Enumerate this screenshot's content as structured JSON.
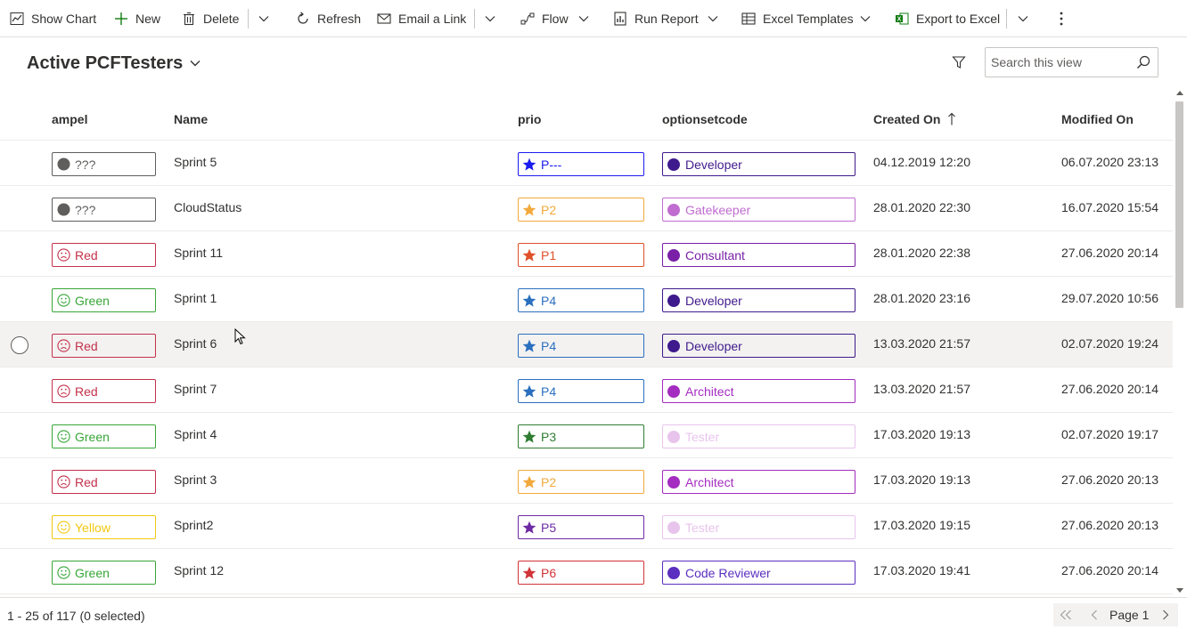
{
  "toolbar": {
    "show_chart": "Show Chart",
    "new": "New",
    "delete": "Delete",
    "refresh": "Refresh",
    "email_link": "Email a Link",
    "flow": "Flow",
    "run_report": "Run Report",
    "excel_templates": "Excel Templates",
    "export_excel": "Export to Excel"
  },
  "view": {
    "title": "Active PCFTesters",
    "search_placeholder": "Search this view"
  },
  "columns": {
    "ampel": "ampel",
    "name": "Name",
    "prio": "prio",
    "optionsetcode": "optionsetcode",
    "created_on": "Created On",
    "modified_on": "Modified On"
  },
  "rows": [
    {
      "ampel": "???",
      "name": "Sprint 5",
      "prio": "P---",
      "option": "Developer",
      "created": "04.12.2019 12:20",
      "modified": "06.07.2020 23:13"
    },
    {
      "ampel": "???",
      "name": "CloudStatus",
      "prio": "P2",
      "option": "Gatekeeper",
      "created": "28.01.2020 22:30",
      "modified": "16.07.2020 15:54"
    },
    {
      "ampel": "Red",
      "name": "Sprint 11",
      "prio": "P1",
      "option": "Consultant",
      "created": "28.01.2020 22:38",
      "modified": "27.06.2020 20:14"
    },
    {
      "ampel": "Green",
      "name": "Sprint 1",
      "prio": "P4",
      "option": "Developer",
      "created": "28.01.2020 23:16",
      "modified": "29.07.2020 10:56"
    },
    {
      "ampel": "Red",
      "name": "Sprint 6",
      "prio": "P4",
      "option": "Developer",
      "created": "13.03.2020 21:57",
      "modified": "02.07.2020 19:24"
    },
    {
      "ampel": "Red",
      "name": "Sprint 7",
      "prio": "P4",
      "option": "Architect",
      "created": "13.03.2020 21:57",
      "modified": "27.06.2020 20:14"
    },
    {
      "ampel": "Green",
      "name": "Sprint 4",
      "prio": "P3",
      "option": "Tester",
      "created": "17.03.2020 19:13",
      "modified": "02.07.2020 19:17"
    },
    {
      "ampel": "Red",
      "name": "Sprint 3",
      "prio": "P2",
      "option": "Architect",
      "created": "17.03.2020 19:13",
      "modified": "27.06.2020 20:13"
    },
    {
      "ampel": "Yellow",
      "name": "Sprint2",
      "prio": "P5",
      "option": "Tester",
      "created": "17.03.2020 19:15",
      "modified": "27.06.2020 20:13"
    },
    {
      "ampel": "Green",
      "name": "Sprint 12",
      "prio": "P6",
      "option": "Code Reviewer",
      "created": "17.03.2020 19:41",
      "modified": "27.06.2020 20:14"
    }
  ],
  "footer": {
    "status": "1 - 25 of 117 (0 selected)",
    "page": "Page 1"
  },
  "colors": {
    "ampel_unknown": "#605e5c",
    "ampel_red": "#c4314b",
    "ampel_green": "#37a637",
    "ampel_yellow": "#f2c811",
    "prio_dash": "#1b1bf0",
    "prio_p1": "#e0502a",
    "prio_p2": "#f2a93b",
    "prio_p3": "#2f7d32",
    "prio_p4": "#2b6fbf",
    "prio_p5": "#6e2aa3",
    "prio_p6": "#d13438",
    "opt_developer": "#3f1a8c",
    "opt_gatekeeper": "#c06cd0",
    "opt_consultant": "#7a1fa8",
    "opt_architect": "#a42cc0",
    "opt_tester": "#e8c4ec",
    "opt_code_reviewer": "#5b2fbf"
  }
}
